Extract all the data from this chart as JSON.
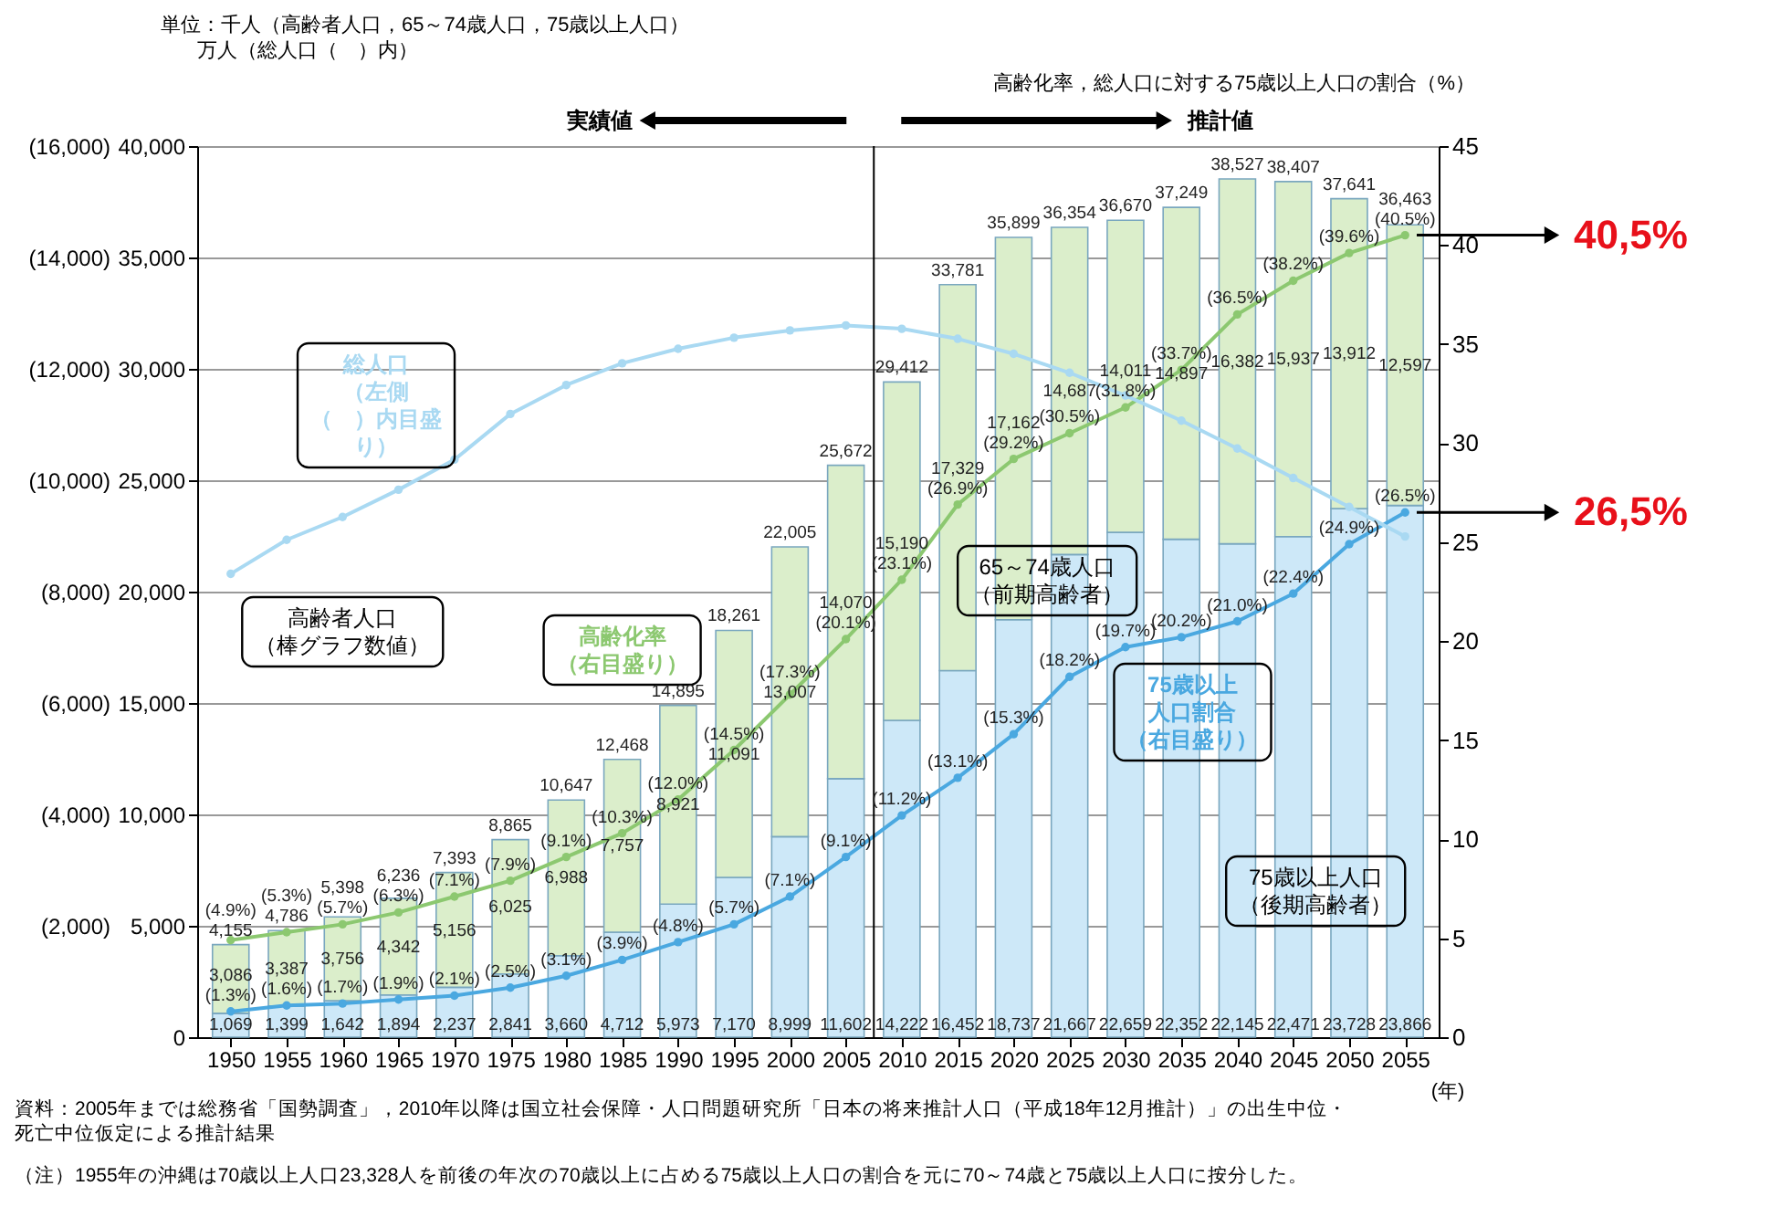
{
  "chart_data": {
    "type": "bar",
    "stacked": true,
    "x": [
      1950,
      1955,
      1960,
      1965,
      1970,
      1975,
      1980,
      1985,
      1990,
      1995,
      2000,
      2005,
      2010,
      2015,
      2020,
      2025,
      2030,
      2035,
      2040,
      2045,
      2050,
      2055
    ],
    "xlim": [
      1947,
      2058
    ],
    "xticks": [
      1950,
      1955,
      1960,
      1965,
      1970,
      1975,
      1980,
      1985,
      1990,
      1995,
      2000,
      2005,
      2010,
      2015,
      2020,
      2025,
      2030,
      2035,
      2040,
      2045,
      2050,
      2055
    ],
    "xlabel": "(年)",
    "ylim": [
      0,
      40000
    ],
    "yticks": [
      {
        "value": 0,
        "label": "0"
      },
      {
        "value": 5000,
        "label": "5,000"
      },
      {
        "value": 10000,
        "label": "10,000"
      },
      {
        "value": 15000,
        "label": "15,000"
      },
      {
        "value": 20000,
        "label": "20,000"
      },
      {
        "value": 25000,
        "label": "25,000"
      },
      {
        "value": 30000,
        "label": "30,000"
      },
      {
        "value": 35000,
        "label": "35,000"
      },
      {
        "value": 40000,
        "label": "40,000"
      }
    ],
    "y3lim": [
      0,
      16000
    ],
    "y3ticks": [
      {
        "value": 2000,
        "label": "(2,000)"
      },
      {
        "value": 4000,
        "label": "(4,000)"
      },
      {
        "value": 6000,
        "label": "(6,000)"
      },
      {
        "value": 8000,
        "label": "(8,000)"
      },
      {
        "value": 10000,
        "label": "(10,000)"
      },
      {
        "value": 12000,
        "label": "(12,000)"
      },
      {
        "value": 14000,
        "label": "(14,000)"
      },
      {
        "value": 16000,
        "label": "(16,000)"
      }
    ],
    "y2lim": [
      0,
      45
    ],
    "y2ticks": [
      0,
      5,
      10,
      15,
      20,
      25,
      30,
      35,
      40,
      45
    ],
    "y2label": "高齢化率，総人口に対する75歳以上人口の割合（%）",
    "grid": "y",
    "legend": false,
    "marker": "circle",
    "line_style": "solid",
    "ref_lines": [
      {
        "axis": "x",
        "value": 2007.5,
        "color": "#000000"
      }
    ],
    "series": [
      {
        "name": "75歳以上人口（後期高齢者）",
        "color": "#cde8f8",
        "values": [
          1069,
          1399,
          1642,
          1894,
          2237,
          2841,
          3660,
          4712,
          5973,
          7170,
          8999,
          11602,
          14222,
          16452,
          18737,
          21667,
          22659,
          22352,
          22145,
          22471,
          23728,
          23866
        ],
        "value_labels": [
          "1,069",
          "1,399",
          "1,642",
          "1,894",
          "2,237",
          "2,841",
          "3,660",
          "4,712",
          "5,973",
          "7,170",
          "8,999",
          "11,602",
          "14,222",
          "16,452",
          "18,737",
          "21,667",
          "22,659",
          "22,352",
          "22,145",
          "22,471",
          "23,728",
          "23,866"
        ]
      },
      {
        "name": "65～74歳人口（前期高齢者）",
        "color": "#dbeecb",
        "values": [
          3086,
          3387,
          3756,
          4342,
          5156,
          6025,
          6988,
          7757,
          8921,
          11091,
          13007,
          14070,
          15190,
          17329,
          17162,
          14687,
          14011,
          14897,
          16382,
          15937,
          13912,
          12597
        ],
        "value_labels": [
          "3,086",
          "3,387",
          "3,756",
          "4,342",
          "5,156",
          "6,025",
          "6,988",
          "7,757",
          "8,921",
          "11,091",
          "13,007",
          "14,070",
          "15,190",
          "17,329",
          "17,162",
          "14,687",
          "14,011",
          "14,897",
          "16,382",
          "15,937",
          "13,912",
          "12,597"
        ]
      },
      {
        "name": "高齢化率（右目盛り）",
        "type": "line",
        "axis": "y2",
        "color": "#8cc870",
        "values": [
          4.9,
          5.3,
          5.7,
          6.3,
          7.1,
          7.9,
          9.1,
          10.3,
          12.0,
          14.5,
          17.3,
          20.1,
          23.1,
          26.9,
          29.2,
          30.5,
          31.8,
          33.7,
          36.5,
          38.2,
          39.6,
          40.5
        ],
        "value_labels": [
          "(4.9%)",
          "(5.3%)",
          "(5.7%)",
          "(6.3%)",
          "(7.1%)",
          "(7.9%)",
          "(9.1%)",
          "(10.3%)",
          "(12.0%)",
          "(14.5%)",
          "(17.3%)",
          "(20.1%)",
          "(23.1%)",
          "(26.9%)",
          "(29.2%)",
          "(30.5%)",
          "(31.8%)",
          "(33.7%)",
          "(36.5%)",
          "(38.2%)",
          "(39.6%)",
          "(40.5%)"
        ]
      },
      {
        "name": "75歳以上人口割合（右目盛り）",
        "type": "line",
        "axis": "y2",
        "color": "#4aa8e0",
        "values": [
          1.3,
          1.6,
          1.7,
          1.9,
          2.1,
          2.5,
          3.1,
          3.9,
          4.8,
          5.7,
          7.1,
          9.1,
          11.2,
          13.1,
          15.3,
          18.2,
          19.7,
          20.2,
          21.0,
          22.4,
          24.9,
          26.5
        ],
        "value_labels": [
          "(1.3%)",
          "(1.6%)",
          "(1.7%)",
          "(1.9%)",
          "(2.1%)",
          "(2.5%)",
          "(3.1%)",
          "(3.9%)",
          "(4.8%)",
          "(5.7%)",
          "(7.1%)",
          "(9.1%)",
          "(11.2%)",
          "(13.1%)",
          "(15.3%)",
          "(18.2%)",
          "(19.7%)",
          "(20.2%)",
          "(21.0%)",
          "(22.4%)",
          "(24.9%)",
          "(26.5%)"
        ]
      },
      {
        "name": "総人口（左側（　）内目盛り）",
        "type": "line",
        "axis": "y3",
        "color": "#a9d9f2",
        "values": [
          8320,
          8930,
          9340,
          9830,
          10370,
          11190,
          11710,
          12100,
          12360,
          12560,
          12690,
          12780,
          12720,
          12540,
          12270,
          11930,
          11520,
          11070,
          10570,
          10040,
          9520,
          8990
        ]
      }
    ],
    "totals": [
      "4,155",
      "4,786",
      "5,398",
      "6,236",
      "7,393",
      "8,865",
      "10,647",
      "12,468",
      "14,895",
      "18,261",
      "22,005",
      "25,672",
      "29,412",
      "33,781",
      "35,899",
      "36,354",
      "36,670",
      "37,249",
      "38,527",
      "38,407",
      "37,641",
      "36,463"
    ],
    "annotations": [
      "単位：千人（高齢者人口，65～74歳人口，75歳以上人口）",
      "万人（総人口（　）内）",
      "実績値",
      "推計値",
      "高齢者人口（棒グラフ数値）",
      "40,5%",
      "26,5%",
      "資料：2005年までは総務省「国勢調査」，2010年以降は国立社会保障・人口問題研究所「日本の将来推計人口（平成18年12月推計）」の出生中位・死亡中位仮定による推計結果",
      "（注）1955年の沖縄は70歳以上人口23,328人を前後の年次の70歳以上に占める75歳以上人口の割合を元に70～74歳と75歳以上人口に按分した。"
    ]
  }
}
